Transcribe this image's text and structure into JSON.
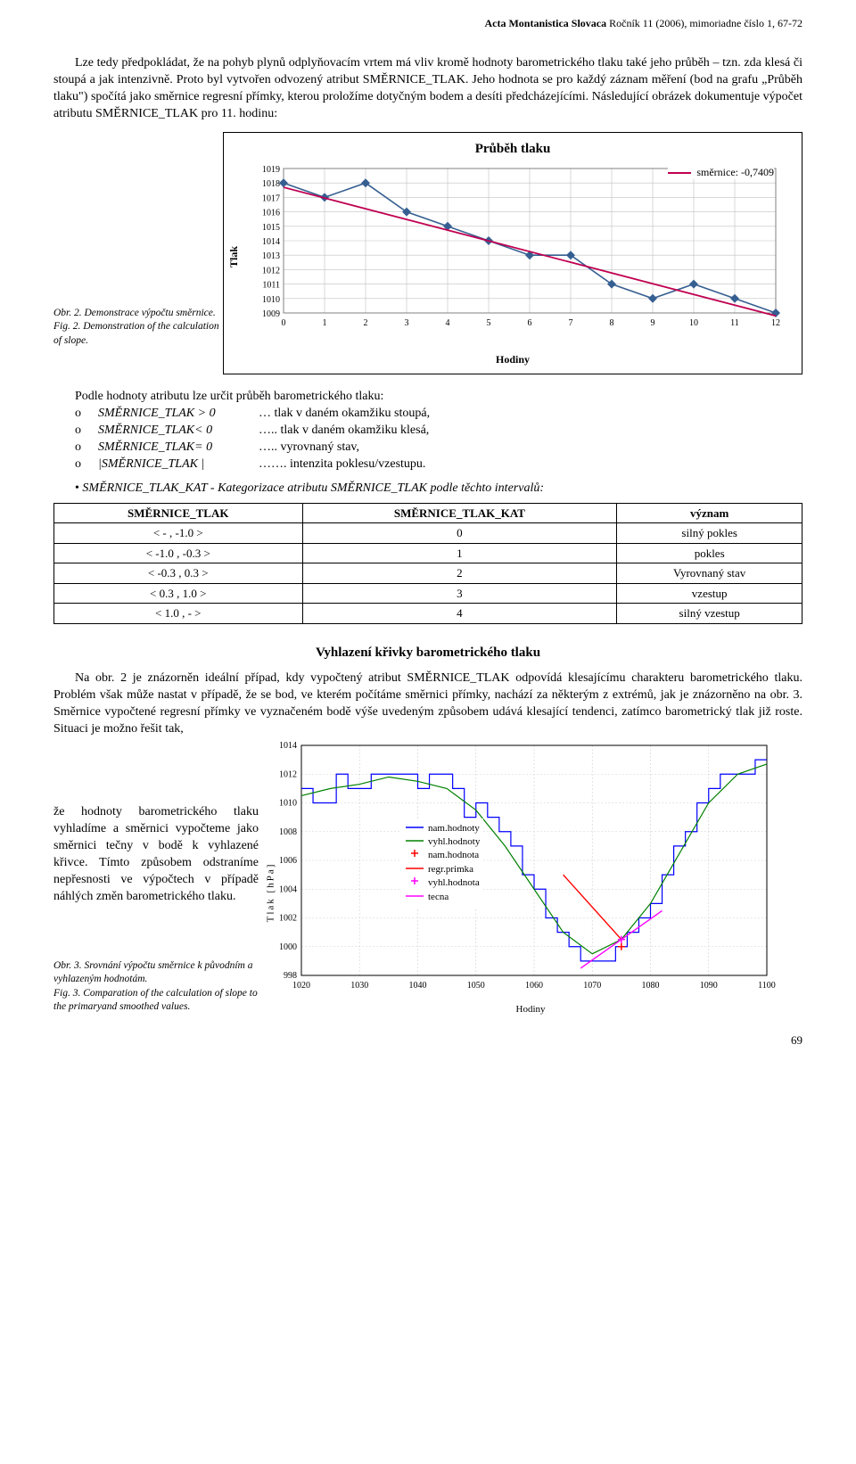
{
  "journal": {
    "name_bold": "Acta Montanistica Slovaca",
    "rest": "   Ročník 11 (2006), mimoriadne číslo 1, 67-72"
  },
  "para1": "Lze tedy předpokládat, že na pohyb plynů odplyňovacím vrtem má vliv kromě hodnoty barometrického tlaku také jeho průběh – tzn. zda klesá či stoupá a jak intenzivně. Proto byl vytvořen odvozený atribut SMĚRNICE_TLAK. Jeho hodnota se pro každý záznam měření (bod na grafu „Průběh tlaku\") spočítá jako směrnice regresní přímky, kterou proložíme dotyčným bodem a desíti předcházejícími. Následující obrázek dokumentuje výpočet atributu SMĚRNICE_TLAK  pro 11. hodinu:",
  "fig2": {
    "caption_cz": "Obr. 2.  Demonstrace výpočtu směrnice.",
    "caption_en": "Fig. 2.  Demonstration of the calculation of slope.",
    "title": "Průběh tlaku",
    "legend": "směrnice: -0,7409",
    "ylabel": "Tlak",
    "xlabel": "Hodiny",
    "yticks": [
      1009,
      1010,
      1011,
      1012,
      1013,
      1014,
      1015,
      1016,
      1017,
      1018,
      1019
    ],
    "xticks": [
      0,
      1,
      2,
      3,
      4,
      5,
      6,
      7,
      8,
      9,
      10,
      11,
      12
    ],
    "data_blue": [
      [
        0,
        1018
      ],
      [
        1,
        1017
      ],
      [
        2,
        1018
      ],
      [
        3,
        1016
      ],
      [
        4,
        1015
      ],
      [
        5,
        1014
      ],
      [
        6,
        1013
      ],
      [
        7,
        1013
      ],
      [
        8,
        1011
      ],
      [
        9,
        1010
      ],
      [
        10,
        1011
      ],
      [
        11,
        1010
      ],
      [
        12,
        1009
      ]
    ],
    "regression": [
      [
        0,
        1017.7
      ],
      [
        12,
        1008.8
      ]
    ],
    "colors": {
      "series": "#365f91",
      "regression": "#c00050",
      "marker": "#365f91",
      "grid": "#c0c0c0",
      "bg": "#ffffff"
    }
  },
  "interpret_lead": "Podle hodnoty atributu lze určit průběh barometrického tlaku:",
  "interpret_rows": [
    {
      "term": "SMĚRNICE_TLAK > 0",
      "desc": "…  tlak v daném okamžiku stoupá,"
    },
    {
      "term": "SMĚRNICE_TLAK< 0",
      "desc": "….. tlak v daném okamžiku klesá,"
    },
    {
      "term": "SMĚRNICE_TLAK= 0",
      "desc": "….. vyrovnaný stav,"
    },
    {
      "term": "|SMĚRNICE_TLAK |",
      "desc": "……. intenzita poklesu/vzestupu."
    }
  ],
  "bullet_text": "SMĚRNICE_TLAK_KAT - Kategorizace atributu SMĚRNICE_TLAK  podle těchto intervalů:",
  "table": {
    "headers": [
      "SMĚRNICE_TLAK",
      "SMĚRNICE_TLAK_KAT",
      "význam"
    ],
    "rows": [
      [
        "< - , -1.0 >",
        "0",
        "silný pokles"
      ],
      [
        "< -1.0 , -0.3 >",
        "1",
        "pokles"
      ],
      [
        "< -0.3 , 0.3 >",
        "2",
        "Vyrovnaný stav"
      ],
      [
        "< 0.3 , 1.0 >",
        "3",
        "vzestup"
      ],
      [
        "< 1.0 , - >",
        "4",
        "silný vzestup"
      ]
    ]
  },
  "section2_title": "Vyhlazení křivky barometrického tlaku",
  "para2a": "Na obr. 2 je znázorněn ideální případ, kdy vypočtený atribut SMĚRNICE_TLAK odpovídá klesajícímu charakteru barometrického tlaku. Problém však může nastat v případě, že se bod, ve kterém počítáme směrnici přímky, nachází za některým z extrémů, jak je znázorněno na obr. 3. Směrnice vypočtené regresní přímky ve vyznačeném bodě výše uvedeným způsobem udává klesající tendenci, zatímco barometrický tlak již roste. Situaci je možno řešit tak,",
  "para2b": "že hodnoty barometrického tlaku vyhladíme a směrnici vypočteme jako směrnici tečny v bodě k vyhlazené křivce. Tímto způsobem odstraníme nepřesnosti ve výpočtech v případě náhlých změn barometrického tlaku.",
  "fig3": {
    "caption_cz": "Obr. 3.  Srovnání výpočtu směrnice k původním a vyhlazeným hodnotám.",
    "caption_en": "Fig. 3.  Comparation of the calculation of slope to the primaryand smoothed values.",
    "ylabel": "Tlak [hPa]",
    "xlabel": "Hodiny",
    "yticks": [
      998,
      1000,
      1002,
      1004,
      1006,
      1008,
      1010,
      1012,
      1014
    ],
    "xticks": [
      1020,
      1030,
      1040,
      1050,
      1060,
      1070,
      1080,
      1090,
      1100
    ],
    "legend_items": [
      {
        "label": "nam.hodnoty",
        "style": "line",
        "color": "#0000ff"
      },
      {
        "label": "vyhl.hodnoty",
        "style": "line",
        "color": "#008000"
      },
      {
        "label": "nam.hodnota",
        "style": "plus",
        "color": "#ff0000"
      },
      {
        "label": "regr.primka",
        "style": "line",
        "color": "#ff0000"
      },
      {
        "label": "vyhl.hodnota",
        "style": "plus",
        "color": "#ff00ff"
      },
      {
        "label": "tecna",
        "style": "line",
        "color": "#ff00ff"
      }
    ],
    "blue_series": [
      [
        1020,
        1011
      ],
      [
        1022,
        1010
      ],
      [
        1024,
        1010
      ],
      [
        1026,
        1012
      ],
      [
        1028,
        1011
      ],
      [
        1030,
        1011
      ],
      [
        1032,
        1012
      ],
      [
        1034,
        1012
      ],
      [
        1036,
        1012
      ],
      [
        1038,
        1012
      ],
      [
        1040,
        1011
      ],
      [
        1042,
        1012
      ],
      [
        1044,
        1012
      ],
      [
        1046,
        1011
      ],
      [
        1048,
        1009
      ],
      [
        1050,
        1010
      ],
      [
        1052,
        1009
      ],
      [
        1054,
        1008
      ],
      [
        1056,
        1007
      ],
      [
        1058,
        1005
      ],
      [
        1060,
        1004
      ],
      [
        1062,
        1002
      ],
      [
        1064,
        1001
      ],
      [
        1066,
        1000
      ],
      [
        1068,
        999
      ],
      [
        1070,
        999
      ],
      [
        1072,
        999
      ],
      [
        1074,
        1000
      ],
      [
        1076,
        1001
      ],
      [
        1078,
        1002
      ],
      [
        1080,
        1003
      ],
      [
        1082,
        1005
      ],
      [
        1084,
        1007
      ],
      [
        1086,
        1008
      ],
      [
        1088,
        1010
      ],
      [
        1090,
        1011
      ],
      [
        1092,
        1012
      ],
      [
        1094,
        1012
      ],
      [
        1096,
        1012
      ],
      [
        1098,
        1013
      ],
      [
        1100,
        1013
      ]
    ],
    "green_series": [
      [
        1020,
        1010.5
      ],
      [
        1025,
        1011
      ],
      [
        1030,
        1011.3
      ],
      [
        1035,
        1011.8
      ],
      [
        1040,
        1011.5
      ],
      [
        1045,
        1011
      ],
      [
        1050,
        1009.5
      ],
      [
        1055,
        1007
      ],
      [
        1060,
        1004
      ],
      [
        1065,
        1001
      ],
      [
        1070,
        999.5
      ],
      [
        1075,
        1000.5
      ],
      [
        1080,
        1003
      ],
      [
        1085,
        1006.5
      ],
      [
        1090,
        1010
      ],
      [
        1095,
        1012
      ],
      [
        1100,
        1012.7
      ]
    ],
    "red_point": [
      1075,
      1000
    ],
    "red_line": [
      [
        1065,
        1005
      ],
      [
        1075,
        1000.5
      ]
    ],
    "magenta_point": [
      1075,
      1000.5
    ],
    "magenta_line": [
      [
        1068,
        998.5
      ],
      [
        1082,
        1002.5
      ]
    ],
    "colors": {
      "bg": "#ffffff",
      "grid": "#d0d0d0"
    }
  },
  "pagenum": "69"
}
